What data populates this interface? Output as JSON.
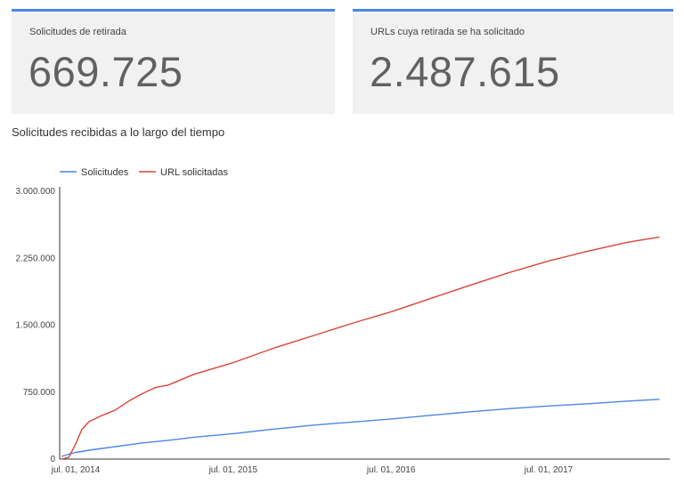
{
  "cards": [
    {
      "label": "Solicitudes de retirada",
      "value": "669.725"
    },
    {
      "label": "URLs cuya retirada se ha solicitado",
      "value": "2.487.615"
    }
  ],
  "section_title": "Solicitudes recibidas a lo largo del tiempo",
  "chart_data": {
    "type": "line",
    "legend_position": "top-left",
    "grid": false,
    "ylim": [
      0,
      3000000
    ],
    "y_ticks": [
      0,
      750000,
      1500000,
      2250000,
      3000000
    ],
    "y_tick_labels": [
      "0",
      "750.000",
      "1.500.000",
      "2.250.000",
      "3.000.000"
    ],
    "x_ticks": [
      "2014-07-01",
      "2015-07-01",
      "2016-07-01",
      "2017-07-01"
    ],
    "x_tick_labels": [
      "jul. 01, 2014",
      "jul. 01, 2015",
      "jul. 01, 2016",
      "jul. 01, 2017"
    ],
    "x": [
      "2014-05-29",
      "2014-06-15",
      "2014-07-01",
      "2014-07-15",
      "2014-08-01",
      "2014-09-01",
      "2014-10-01",
      "2014-11-01",
      "2014-12-01",
      "2015-01-01",
      "2015-02-01",
      "2015-04-01",
      "2015-07-01",
      "2015-10-01",
      "2016-01-01",
      "2016-04-01",
      "2016-07-01",
      "2016-10-01",
      "2017-01-01",
      "2017-04-01",
      "2017-07-01",
      "2017-10-01",
      "2018-01-01",
      "2018-03-15"
    ],
    "series": [
      {
        "name": "Solicitudes",
        "color": "#4a86e8",
        "values": [
          30000,
          55000,
          75000,
          85000,
          100000,
          120000,
          140000,
          160000,
          180000,
          195000,
          210000,
          245000,
          285000,
          335000,
          380000,
          415000,
          450000,
          490000,
          530000,
          565000,
          595000,
          620000,
          650000,
          669725
        ]
      },
      {
        "name": "URL solicitadas",
        "color": "#db4437",
        "values": [
          0,
          20000,
          170000,
          330000,
          420000,
          490000,
          550000,
          650000,
          730000,
          800000,
          830000,
          950000,
          1080000,
          1240000,
          1380000,
          1520000,
          1650000,
          1800000,
          1950000,
          2090000,
          2220000,
          2330000,
          2430000,
          2487615
        ]
      }
    ]
  }
}
